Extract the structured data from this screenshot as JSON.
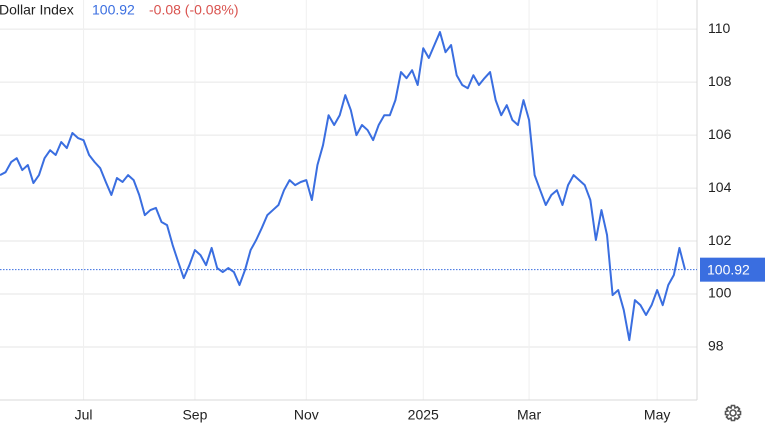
{
  "chart_data": {
    "type": "line",
    "title": "Dollar Index",
    "last_price": 100.92,
    "change": "-0.08 (-0.08%)",
    "color": "#3a6ee0",
    "grid": true,
    "ylim": [
      96,
      111.1
    ],
    "yticks": [
      98,
      100,
      102,
      104,
      106,
      108,
      110
    ],
    "categories": [
      null,
      null,
      null,
      null,
      null,
      null,
      null,
      null,
      null,
      null,
      null,
      null,
      null,
      null,
      null,
      "Jul",
      null,
      null,
      null,
      null,
      null,
      null,
      null,
      null,
      null,
      null,
      null,
      null,
      null,
      null,
      null,
      null,
      null,
      null,
      null,
      "Sep",
      null,
      null,
      null,
      null,
      null,
      null,
      null,
      null,
      null,
      null,
      null,
      null,
      null,
      null,
      null,
      null,
      null,
      null,
      null,
      "Nov",
      null,
      null,
      null,
      null,
      null,
      null,
      null,
      null,
      null,
      null,
      null,
      null,
      null,
      null,
      null,
      null,
      null,
      null,
      null,
      null,
      "2025",
      null,
      null,
      null,
      null,
      null,
      null,
      null,
      null,
      null,
      null,
      null,
      null,
      null,
      null,
      null,
      null,
      null,
      null,
      "Mar",
      null,
      null,
      null,
      null,
      null,
      null,
      null,
      null,
      null,
      null,
      null,
      null,
      null,
      null,
      null,
      null,
      null,
      null,
      null,
      null,
      null,
      null,
      "May",
      null,
      null,
      null,
      null,
      null
    ],
    "values": [
      104.49,
      104.6,
      104.98,
      105.13,
      104.68,
      104.87,
      104.19,
      104.49,
      105.13,
      105.43,
      105.25,
      105.74,
      105.51,
      106.08,
      105.89,
      105.81,
      105.25,
      104.98,
      104.75,
      104.23,
      103.74,
      104.38,
      104.23,
      104.49,
      104.3,
      103.74,
      102.98,
      103.17,
      103.25,
      102.72,
      102.6,
      101.85,
      101.21,
      100.6,
      101.09,
      101.66,
      101.47,
      101.09,
      101.74,
      100.98,
      100.83,
      100.98,
      100.83,
      100.34,
      100.91,
      101.66,
      102.04,
      102.49,
      102.98,
      103.17,
      103.36,
      103.92,
      104.3,
      104.11,
      104.23,
      104.3,
      103.55,
      104.87,
      105.62,
      106.75,
      106.38,
      106.75,
      107.51,
      106.94,
      106.0,
      106.38,
      106.19,
      105.81,
      106.38,
      106.75,
      106.75,
      107.32,
      108.38,
      108.15,
      108.45,
      107.89,
      109.28,
      108.91,
      109.4,
      109.89,
      109.13,
      109.4,
      108.26,
      107.89,
      107.77,
      108.26,
      107.89,
      108.15,
      108.38,
      107.32,
      106.75,
      107.13,
      106.57,
      106.38,
      107.32,
      106.57,
      104.49,
      103.92,
      103.36,
      103.74,
      103.92,
      103.36,
      104.11,
      104.49,
      104.3,
      104.11,
      103.55,
      102.04,
      103.17,
      102.23,
      99.96,
      100.15,
      99.4,
      98.26,
      99.77,
      99.58,
      99.21,
      99.58,
      100.15,
      99.58,
      100.34,
      100.72,
      101.74,
      100.92
    ]
  }
}
